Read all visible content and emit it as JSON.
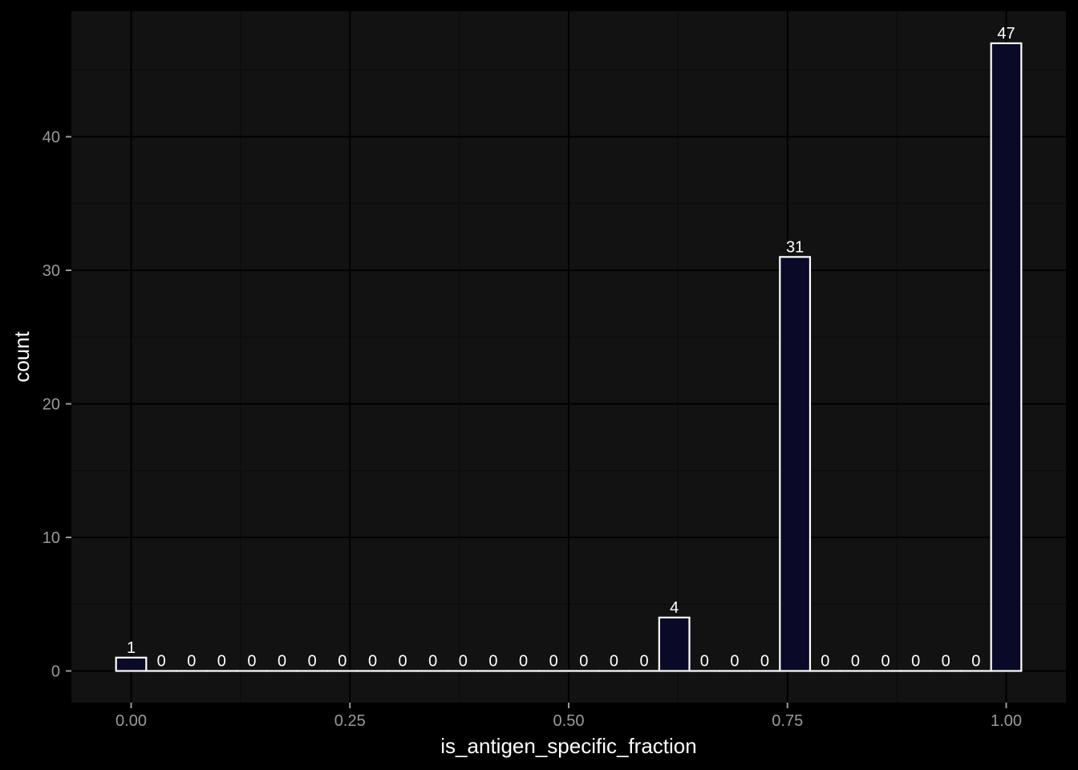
{
  "chart_data": {
    "type": "bar",
    "title": "",
    "xlabel": "is_antigen_specific_fraction",
    "ylabel": "count",
    "xlim": [
      -0.0575,
      1.0575
    ],
    "ylim": [
      -2.35,
      49.35
    ],
    "grid": true,
    "bin_width": 0.0345,
    "bin_centers": [
      0,
      0.0345,
      0.069,
      0.1034,
      0.1379,
      0.1724,
      0.2069,
      0.2414,
      0.2759,
      0.3103,
      0.3448,
      0.3793,
      0.4138,
      0.4483,
      0.4828,
      0.5172,
      0.5517,
      0.5862,
      0.6207,
      0.6552,
      0.6897,
      0.7241,
      0.7586,
      0.7931,
      0.8276,
      0.8621,
      0.8966,
      0.931,
      0.9655,
      1.0
    ],
    "values": [
      1,
      0,
      0,
      0,
      0,
      0,
      0,
      0,
      0,
      0,
      0,
      0,
      0,
      0,
      0,
      0,
      0,
      0,
      4,
      0,
      0,
      0,
      31,
      0,
      0,
      0,
      0,
      0,
      0,
      47
    ],
    "data_labels": [
      "1",
      "0",
      "0",
      "0",
      "0",
      "0",
      "0",
      "0",
      "0",
      "0",
      "0",
      "0",
      "0",
      "0",
      "0",
      "0",
      "0",
      "0",
      "4",
      "0",
      "0",
      "0",
      "31",
      "0",
      "0",
      "0",
      "0",
      "0",
      "0",
      "47"
    ],
    "x_ticks": [
      0,
      0.25,
      0.5,
      0.75,
      1.0
    ],
    "x_tick_labels": [
      "0.00",
      "0.25",
      "0.50",
      "0.75",
      "1.00"
    ],
    "y_ticks": [
      0,
      10,
      20,
      30,
      40
    ],
    "y_tick_labels": [
      "0",
      "10",
      "20",
      "30",
      "40"
    ],
    "colors": {
      "page_background": "#000000",
      "panel_background": "#121212",
      "grid_major": "#000000",
      "grid_minor": "#0b0b0b",
      "bar_fill": "#0a0a28",
      "bar_outline": "#ffffff",
      "tick_text": "#9a9a9a",
      "title_text": "#ffffff"
    }
  }
}
